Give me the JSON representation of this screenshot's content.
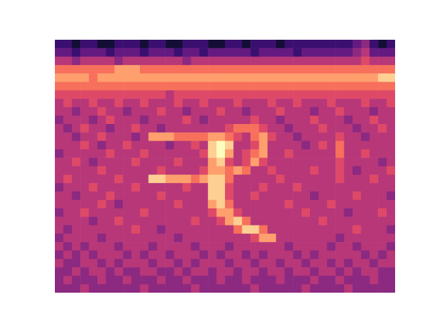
{
  "chart_data": {
    "type": "heatmap",
    "tick_labels": false,
    "color_range": [
      0,
      10
    ],
    "cells": [
      [
        2,
        2,
        1,
        2,
        2,
        1,
        1,
        2,
        2,
        2,
        1,
        2,
        2,
        1,
        1,
        2,
        2,
        2,
        1,
        1,
        2,
        2,
        1,
        2,
        2,
        2,
        1,
        2,
        2,
        2,
        2,
        2,
        2,
        2,
        2,
        3,
        4,
        2,
        1,
        2
      ],
      [
        3,
        3,
        2,
        3,
        3,
        3,
        2,
        3,
        3,
        3,
        2,
        3,
        3,
        3,
        2,
        3,
        3,
        2,
        3,
        3,
        3,
        3,
        3,
        2,
        3,
        3,
        3,
        3,
        2,
        3,
        3,
        3,
        3,
        3,
        3,
        4,
        5,
        3,
        3,
        3
      ],
      [
        5,
        5,
        4,
        5,
        5,
        5,
        5,
        4,
        5,
        5,
        5,
        5,
        5,
        5,
        5,
        4,
        5,
        5,
        5,
        5,
        5,
        5,
        5,
        5,
        5,
        5,
        5,
        5,
        5,
        5,
        5,
        5,
        5,
        5,
        5,
        5,
        6,
        5,
        5,
        5
      ],
      [
        7,
        7,
        7,
        7,
        7,
        7,
        7,
        8,
        8,
        8,
        7,
        7,
        7,
        7,
        7,
        7,
        7,
        7,
        7,
        7,
        7,
        7,
        7,
        7,
        7,
        7,
        7,
        7,
        7,
        7,
        7,
        7,
        7,
        7,
        7,
        7,
        7,
        7,
        7,
        7
      ],
      [
        8,
        8,
        8,
        8,
        7,
        8,
        8,
        8,
        8,
        8,
        8,
        8,
        8,
        8,
        8,
        8,
        8,
        8,
        8,
        8,
        8,
        8,
        8,
        8,
        8,
        8,
        8,
        8,
        8,
        8,
        8,
        8,
        8,
        8,
        8,
        8,
        8,
        8,
        9,
        9
      ],
      [
        7,
        7,
        7,
        7,
        7,
        7,
        7,
        7,
        7,
        7,
        7,
        7,
        7,
        7,
        7,
        7,
        7,
        7,
        7,
        7,
        7,
        7,
        7,
        7,
        7,
        7,
        7,
        7,
        7,
        7,
        7,
        7,
        7,
        7,
        7,
        7,
        7,
        7,
        7,
        7
      ],
      [
        6,
        6,
        6,
        6,
        6,
        6,
        6,
        6,
        6,
        6,
        6,
        6,
        6,
        5,
        6,
        6,
        6,
        6,
        6,
        6,
        6,
        6,
        6,
        6,
        6,
        6,
        6,
        6,
        6,
        6,
        6,
        6,
        6,
        6,
        6,
        6,
        6,
        6,
        6,
        6
      ],
      [
        5,
        6,
        5,
        5,
        6,
        5,
        5,
        6,
        5,
        5,
        6,
        5,
        5,
        5,
        6,
        5,
        5,
        6,
        5,
        5,
        5,
        6,
        5,
        5,
        5,
        6,
        5,
        5,
        6,
        5,
        5,
        5,
        6,
        5,
        5,
        5,
        6,
        5,
        5,
        6
      ],
      [
        5,
        5,
        4,
        5,
        5,
        6,
        5,
        5,
        4,
        5,
        5,
        5,
        6,
        5,
        5,
        4,
        5,
        5,
        5,
        6,
        5,
        5,
        4,
        5,
        5,
        5,
        6,
        5,
        5,
        5,
        4,
        5,
        5,
        6,
        5,
        5,
        5,
        4,
        5,
        5
      ],
      [
        4,
        5,
        5,
        5,
        4,
        5,
        6,
        5,
        5,
        5,
        4,
        5,
        5,
        5,
        5,
        6,
        5,
        4,
        5,
        5,
        5,
        5,
        5,
        6,
        5,
        5,
        4,
        5,
        5,
        5,
        6,
        5,
        5,
        5,
        4,
        5,
        5,
        6,
        5,
        5
      ],
      [
        5,
        4,
        5,
        6,
        5,
        5,
        4,
        5,
        5,
        6,
        5,
        5,
        4,
        5,
        5,
        5,
        5,
        5,
        5,
        5,
        6,
        7,
        7,
        7,
        6,
        5,
        5,
        4,
        5,
        5,
        5,
        6,
        5,
        5,
        5,
        4,
        5,
        5,
        6,
        5
      ],
      [
        5,
        5,
        4,
        5,
        5,
        6,
        5,
        5,
        5,
        4,
        5,
        8,
        8,
        8,
        7,
        7,
        7,
        7,
        8,
        8,
        7,
        6,
        5,
        7,
        8,
        6,
        5,
        5,
        4,
        5,
        5,
        5,
        5,
        6,
        5,
        5,
        4,
        5,
        5,
        5
      ],
      [
        5,
        5,
        5,
        6,
        5,
        4,
        5,
        5,
        6,
        5,
        5,
        5,
        5,
        4,
        5,
        5,
        6,
        5,
        9,
        10,
        9,
        5,
        5,
        6,
        8,
        5,
        5,
        5,
        5,
        4,
        5,
        6,
        5,
        7,
        5,
        5,
        5,
        5,
        5,
        5
      ],
      [
        4,
        5,
        5,
        5,
        5,
        5,
        6,
        5,
        5,
        5,
        6,
        5,
        5,
        5,
        5,
        5,
        5,
        6,
        9,
        10,
        8,
        5,
        6,
        7,
        8,
        5,
        5,
        6,
        5,
        5,
        5,
        5,
        5,
        7,
        5,
        5,
        6,
        5,
        5,
        5
      ],
      [
        5,
        5,
        6,
        5,
        4,
        5,
        5,
        5,
        5,
        6,
        5,
        5,
        5,
        5,
        6,
        5,
        5,
        5,
        8,
        9,
        6,
        5,
        6,
        8,
        6,
        5,
        5,
        5,
        5,
        5,
        5,
        5,
        5,
        6,
        5,
        5,
        5,
        5,
        4,
        5
      ],
      [
        5,
        5,
        5,
        5,
        5,
        6,
        5,
        5,
        5,
        5,
        5,
        5,
        6,
        5,
        5,
        5,
        5,
        6,
        8,
        8,
        7,
        8,
        7,
        5,
        5,
        6,
        5,
        5,
        5,
        5,
        6,
        5,
        5,
        6,
        5,
        4,
        5,
        5,
        5,
        6
      ],
      [
        5,
        6,
        5,
        5,
        5,
        5,
        5,
        6,
        5,
        5,
        5,
        9,
        9,
        8,
        8,
        8,
        7,
        8,
        9,
        9,
        7,
        5,
        5,
        5,
        5,
        5,
        6,
        5,
        5,
        5,
        5,
        5,
        5,
        6,
        5,
        5,
        5,
        6,
        5,
        5
      ],
      [
        4,
        5,
        5,
        5,
        6,
        5,
        5,
        5,
        5,
        6,
        5,
        5,
        5,
        5,
        5,
        6,
        5,
        5,
        9,
        9,
        6,
        5,
        5,
        5,
        6,
        5,
        5,
        5,
        6,
        5,
        5,
        5,
        5,
        5,
        5,
        5,
        5,
        5,
        5,
        5
      ],
      [
        5,
        5,
        4,
        5,
        5,
        5,
        6,
        5,
        5,
        5,
        5,
        5,
        6,
        5,
        5,
        5,
        5,
        5,
        9,
        9,
        6,
        5,
        5,
        6,
        5,
        5,
        5,
        5,
        5,
        5,
        4,
        5,
        5,
        5,
        5,
        6,
        5,
        5,
        5,
        4
      ],
      [
        5,
        5,
        5,
        5,
        5,
        6,
        5,
        4,
        5,
        5,
        5,
        5,
        5,
        5,
        6,
        5,
        5,
        5,
        8,
        9,
        7,
        5,
        5,
        5,
        5,
        5,
        5,
        6,
        5,
        5,
        5,
        5,
        6,
        5,
        5,
        5,
        5,
        5,
        5,
        5
      ],
      [
        4,
        5,
        5,
        6,
        5,
        5,
        5,
        5,
        5,
        5,
        6,
        5,
        5,
        5,
        5,
        5,
        5,
        5,
        6,
        8,
        8,
        6,
        5,
        5,
        5,
        5,
        5,
        5,
        5,
        6,
        5,
        5,
        5,
        5,
        4,
        5,
        5,
        5,
        6,
        5
      ],
      [
        5,
        5,
        5,
        5,
        4,
        5,
        5,
        6,
        5,
        5,
        5,
        5,
        5,
        5,
        5,
        5,
        6,
        5,
        5,
        6,
        8,
        9,
        7,
        5,
        5,
        5,
        5,
        5,
        5,
        5,
        5,
        6,
        5,
        5,
        5,
        5,
        5,
        5,
        5,
        5
      ],
      [
        5,
        4,
        5,
        5,
        5,
        5,
        5,
        5,
        5,
        6,
        5,
        5,
        4,
        5,
        5,
        5,
        5,
        5,
        5,
        5,
        5,
        7,
        9,
        9,
        7,
        5,
        5,
        5,
        5,
        5,
        5,
        5,
        5,
        5,
        5,
        6,
        5,
        5,
        5,
        4
      ],
      [
        4,
        5,
        5,
        5,
        5,
        4,
        5,
        5,
        5,
        5,
        5,
        5,
        5,
        5,
        4,
        5,
        5,
        5,
        5,
        5,
        5,
        5,
        5,
        6,
        8,
        8,
        5,
        5,
        5,
        5,
        5,
        5,
        5,
        4,
        5,
        5,
        5,
        5,
        5,
        5
      ],
      [
        5,
        4,
        5,
        4,
        5,
        5,
        5,
        4,
        5,
        5,
        5,
        4,
        5,
        5,
        5,
        5,
        4,
        5,
        5,
        5,
        4,
        5,
        5,
        5,
        5,
        5,
        5,
        4,
        5,
        5,
        5,
        5,
        4,
        5,
        5,
        4,
        5,
        5,
        5,
        4
      ],
      [
        4,
        5,
        4,
        5,
        4,
        5,
        5,
        5,
        4,
        5,
        4,
        5,
        5,
        4,
        5,
        5,
        5,
        4,
        5,
        4,
        5,
        5,
        4,
        5,
        4,
        5,
        5,
        5,
        4,
        5,
        4,
        5,
        5,
        5,
        5,
        5,
        4,
        5,
        4,
        5
      ],
      [
        5,
        4,
        4,
        5,
        5,
        4,
        5,
        4,
        5,
        5,
        5,
        4,
        5,
        5,
        4,
        5,
        4,
        5,
        5,
        5,
        4,
        5,
        5,
        4,
        5,
        5,
        4,
        5,
        5,
        4,
        5,
        5,
        4,
        5,
        4,
        5,
        5,
        4,
        5,
        5
      ],
      [
        4,
        4,
        5,
        4,
        5,
        5,
        4,
        5,
        4,
        4,
        5,
        5,
        4,
        4,
        5,
        4,
        5,
        5,
        4,
        5,
        5,
        4,
        5,
        5,
        4,
        5,
        5,
        4,
        5,
        5,
        4,
        5,
        5,
        4,
        5,
        4,
        5,
        5,
        4,
        4
      ],
      [
        4,
        5,
        4,
        4,
        4,
        5,
        4,
        4,
        5,
        4,
        4,
        4,
        5,
        4,
        4,
        5,
        4,
        4,
        4,
        5,
        4,
        4,
        5,
        4,
        4,
        4,
        5,
        4,
        4,
        4,
        5,
        4,
        4,
        5,
        4,
        4,
        4,
        5,
        4,
        4
      ],
      [
        4,
        4,
        4,
        5,
        4,
        4,
        4,
        4,
        4,
        4,
        5,
        4,
        4,
        4,
        4,
        4,
        5,
        4,
        4,
        4,
        4,
        4,
        4,
        5,
        4,
        4,
        4,
        4,
        4,
        5,
        4,
        4,
        4,
        4,
        5,
        4,
        4,
        4,
        4,
        4
      ]
    ]
  }
}
